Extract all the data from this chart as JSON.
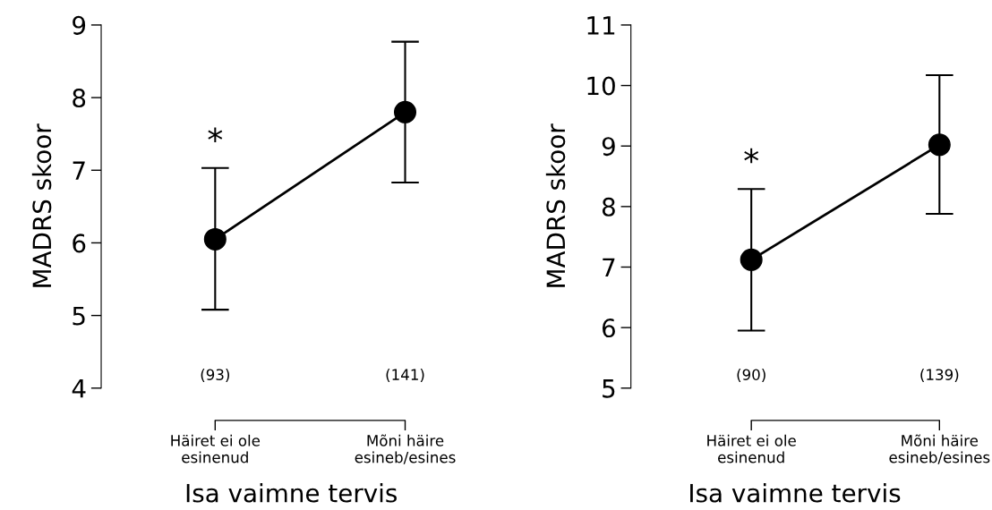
{
  "chart_data": [
    {
      "type": "line",
      "categories": [
        "Häiret ei ole\nesinenud",
        "Mõni häire\nesineb/esines"
      ],
      "xlabel": "Isa vaimne tervis",
      "ylabel": "MADRS skoor",
      "ylim": [
        4,
        9
      ],
      "yticks": [
        4,
        5,
        6,
        7,
        8,
        9
      ],
      "marker": "circle",
      "grid": false,
      "series": [
        {
          "color": "#000000",
          "values": [
            6.05,
            7.8
          ],
          "errors": [
            [
              5.08,
              7.03
            ],
            [
              6.83,
              8.77
            ]
          ]
        }
      ],
      "annotations": [
        "*",
        "(93)",
        "(141)"
      ]
    },
    {
      "type": "line",
      "categories": [
        "Häiret ei ole\nesinenud",
        "Mõni häire\nesineb/esines"
      ],
      "xlabel": "Isa vaimne tervis",
      "ylabel": "MADRS skoor",
      "ylim": [
        5,
        11
      ],
      "yticks": [
        5,
        6,
        7,
        8,
        9,
        10,
        11
      ],
      "marker": "circle",
      "grid": false,
      "series": [
        {
          "color": "#000000",
          "values": [
            7.12,
            9.02
          ],
          "errors": [
            [
              5.95,
              8.29
            ],
            [
              7.88,
              10.17
            ]
          ]
        }
      ],
      "annotations": [
        "*",
        "(90)",
        "(139)"
      ]
    }
  ]
}
